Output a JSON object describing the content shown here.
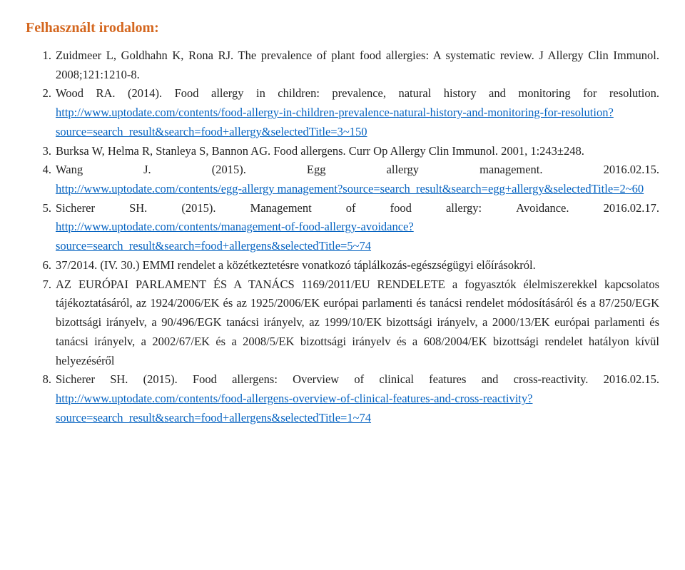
{
  "heading": "Felhasznált irodalom:",
  "colors": {
    "heading": "#d4671f",
    "link": "#0563c1",
    "text": "#222222",
    "background": "#ffffff"
  },
  "typography": {
    "font_family": "Georgia, Times New Roman, serif",
    "heading_fontsize_pt": 15,
    "heading_weight": "bold",
    "body_fontsize_pt": 12.5,
    "line_height": 1.62,
    "list_alignment": "justify"
  },
  "refs": [
    {
      "num": "1.",
      "text": "Zuidmeer L, Goldhahn K, Rona RJ. The prevalence of plant food allergies: A systematic review. J Allergy Clin Immunol. 2008;121:1210-8."
    },
    {
      "num": "2.",
      "pre": "Wood RA. (2014). Food allergy in children: prevalence, natural history and monitoring for resolution. ",
      "link1": "http://www.uptodate.com/contents/food-allergy-in-children-prevalence-natural-history-and-monitoring-for-resolution?source=search_result&search=food+allergy&selectedTitle=3~150"
    },
    {
      "num": "3.",
      "text": "Burksa W, Helma R, Stanleya S, Bannon AG. Food allergens. Curr Op Allergy Clin Immunol. 2001, 1:243±248."
    },
    {
      "num": "4.",
      "spread1": [
        "Wang",
        "J.",
        "(2015).",
        "Egg",
        "allergy",
        "management.",
        "2016.02.15."
      ],
      "link1": "http://www.uptodate.com/contents/egg-allergy management?source=search_result&search=egg+allergy&selectedTitle=2~60"
    },
    {
      "num": "5.",
      "spread1": [
        "Sicherer",
        "SH.",
        "(2015).",
        "Management",
        "of",
        "food",
        "allergy:",
        "Avoidance.",
        "2016.02.17."
      ],
      "link1": "http://www.uptodate.com/contents/management-of-food-allergy-avoidance?source=search_result&search=food+allergens&selectedTitle=5~74"
    },
    {
      "num": "6.",
      "text": "37/2014. (IV. 30.) EMMI rendelet a közétkeztetésre vonatkozó táplálkozás-egészségügyi előírásokról."
    },
    {
      "num": "7.",
      "text": "AZ EURÓPAI PARLAMENT ÉS A TANÁCS 1169/2011/EU RENDELETE a fogyasztók élelmiszerekkel kapcsolatos tájékoztatásáról, az 1924/2006/EK és az 1925/2006/EK európai parlamenti és tanácsi rendelet módosításáról és a 87/250/EGK bizottsági irányelv, a 90/496/EGK tanácsi irányelv, az 1999/10/EK bizottsági irányelv, a 2000/13/EK európai parlamenti és tanácsi irányelv, a 2002/67/EK és a 2008/5/EK bizottsági irányelv és a 608/2004/EK bizottsági rendelet hatályon kívül helyezéséről"
    },
    {
      "num": "8.",
      "pre": "Sicherer SH. (2015). Food allergens: Overview of clinical features and cross-reactivity. 2016.02.15. ",
      "link1": "http://www.uptodate.com/contents/food-allergens-overview-of-clinical-features-and-cross-reactivity?source=search_result&search=food+allergens&selectedTitle=1~74"
    }
  ]
}
